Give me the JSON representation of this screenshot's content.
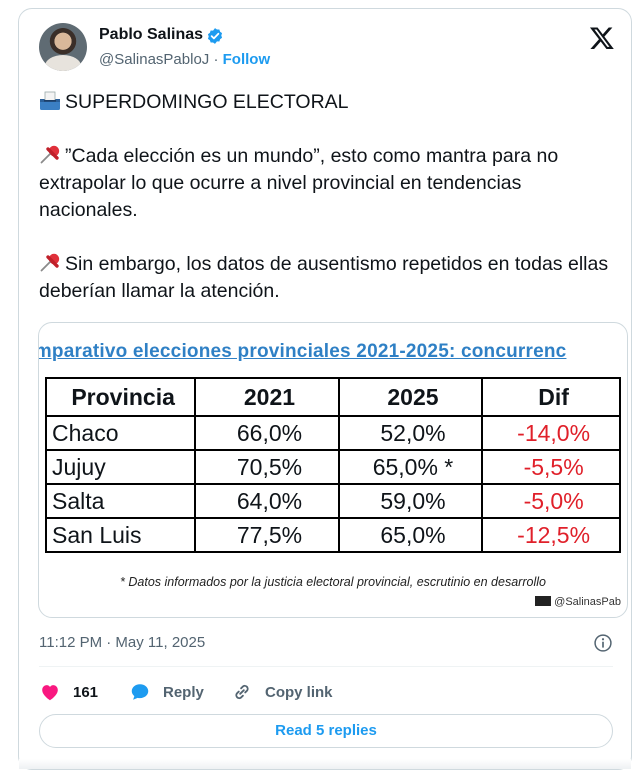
{
  "author": {
    "name": "Pablo Salinas",
    "handle": "@SalinasPabloJ",
    "separator": "·",
    "follow_label": "Follow"
  },
  "tweet": {
    "headline": "SUPERDOMINGO ELECTORAL",
    "paragraph1": "”Cada elección es un mundo”, esto como mantra para no extrapolar lo que ocurre a nivel provincial en tendencias nacionales.",
    "paragraph2": "Sin embargo, los datos de ausentismo repetidos en todas ellas deberían llamar la atención."
  },
  "media": {
    "title": "omparativo elecciones provinciales 2021-2025: concurrenc",
    "headers": [
      "Provincia",
      "2021",
      "2025",
      "Dif"
    ],
    "rows": [
      [
        "Chaco",
        "66,0%",
        "52,0%",
        "-14,0%"
      ],
      [
        "Jujuy",
        "70,5%",
        "65,0% *",
        "-5,5%"
      ],
      [
        "Salta",
        "64,0%",
        "59,0%",
        "-5,0%"
      ],
      [
        "San Luis",
        "77,5%",
        "65,0%",
        "-12,5%"
      ]
    ],
    "footnote": "* Datos informados por la justicia electoral provincial, escrutinio en desarrollo",
    "watermark": "@SalinasPab"
  },
  "meta": {
    "timestamp": "11:12 PM · May 11, 2025"
  },
  "actions": {
    "likes": "161",
    "reply_label": "Reply",
    "copy_link_label": "Copy link",
    "read_replies_label": "Read 5 replies"
  },
  "colors": {
    "accent": "#1d9bf0",
    "negative": "#e0202a",
    "like": "#f91880",
    "muted": "#536471"
  },
  "icons": [
    "verified-badge-icon",
    "x-logo-icon",
    "ballot-box-icon",
    "pushpin-icon",
    "info-icon",
    "heart-icon",
    "reply-bubble-icon",
    "link-icon"
  ]
}
